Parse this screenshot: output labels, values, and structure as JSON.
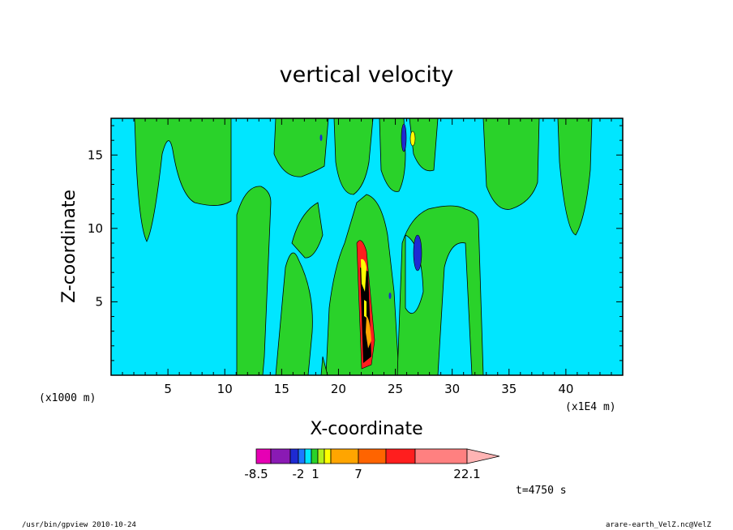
{
  "chart_data": {
    "type": "contour",
    "title": "vertical velocity",
    "xlabel": "X-coordinate",
    "ylabel": "Z-coordinate",
    "x_unit_label": "(x1000 m)",
    "x_scale_label": "(x1E4 m)",
    "xlim": [
      0,
      45
    ],
    "ylim": [
      0,
      17.5
    ],
    "x_ticks": [
      5,
      10,
      15,
      20,
      25,
      30,
      35,
      40
    ],
    "y_ticks": [
      5,
      10,
      15
    ],
    "colorbar": {
      "labels": [
        "-8.5",
        "-2",
        "1",
        "7",
        "22.1"
      ],
      "colors": [
        "#e600b4",
        "#8a1ab4",
        "#1e2ad2",
        "#1e78ff",
        "#00e6ff",
        "#2ad22a",
        "#b4f01e",
        "#ffff00",
        "#ffa500",
        "#ff6400",
        "#ff1e1e",
        "#ff8080",
        "#ffb4b4"
      ]
    },
    "background_color": "#00e6ff",
    "positive_color": "#2ad22a",
    "time_label": "t=4750 s"
  },
  "footer": {
    "left": "/usr/bin/gpview  2010-10-24",
    "right": "arare-earth_VelZ.nc@VelZ"
  }
}
